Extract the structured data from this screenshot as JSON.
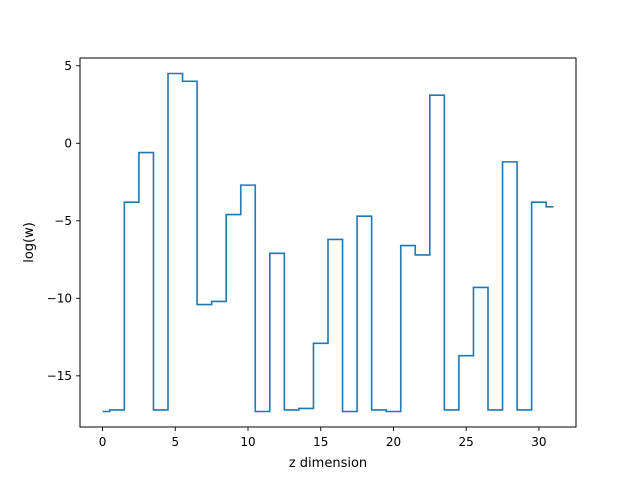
{
  "chart_data": {
    "type": "line",
    "drawstyle": "steps-mid",
    "title": "",
    "xlabel": "z dimension",
    "ylabel": "log(w)",
    "xlim": [
      -1.55,
      32.55
    ],
    "ylim": [
      -18.3,
      5.5
    ],
    "xticks": [
      0,
      5,
      10,
      15,
      20,
      25,
      30
    ],
    "yticks": [
      5,
      0,
      -5,
      -10,
      -15
    ],
    "ytick_labels": [
      "5",
      "0",
      "−5",
      "−10",
      "−15"
    ],
    "grid": false,
    "legend": "none",
    "series": [
      {
        "color": "#1f77b4",
        "x": [
          0,
          1,
          2,
          3,
          4,
          5,
          6,
          7,
          8,
          9,
          10,
          11,
          12,
          13,
          14,
          15,
          16,
          17,
          18,
          19,
          20,
          21,
          22,
          23,
          24,
          25,
          26,
          27,
          28,
          29,
          30,
          31
        ],
        "values": [
          -17.3,
          -17.2,
          -3.8,
          -0.6,
          -17.2,
          4.5,
          4.0,
          -10.4,
          -10.2,
          -4.6,
          -2.7,
          -17.3,
          -7.1,
          -17.2,
          -17.1,
          -12.9,
          -6.2,
          -17.3,
          -4.7,
          -17.2,
          -17.3,
          -6.6,
          -7.2,
          3.1,
          -17.2,
          -13.7,
          -9.3,
          -17.2,
          -1.2,
          -17.2,
          -3.8,
          -4.1
        ]
      }
    ]
  }
}
